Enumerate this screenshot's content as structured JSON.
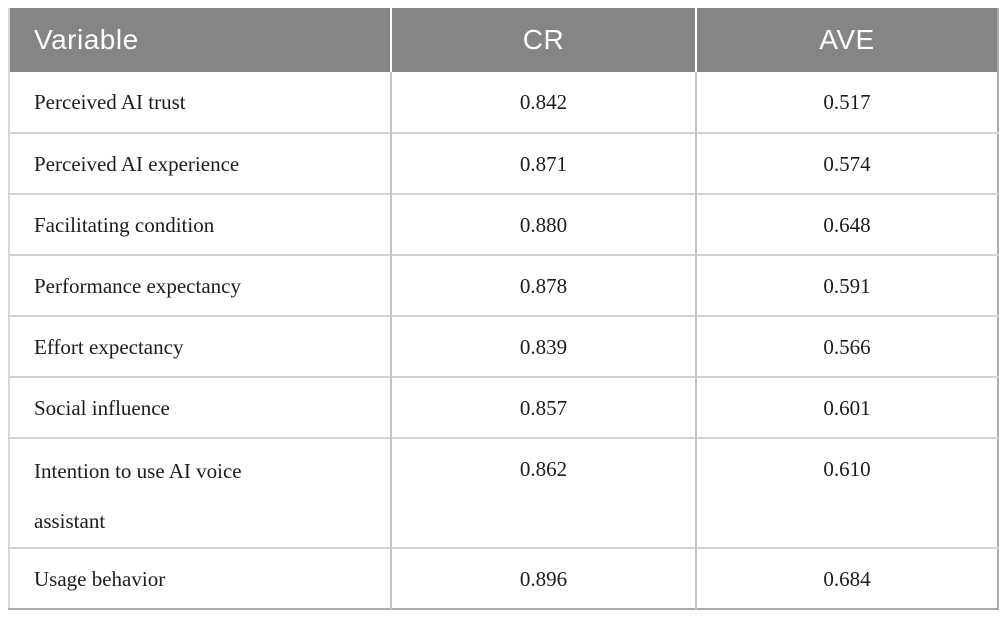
{
  "page": {
    "background": "#ffffff"
  },
  "table": {
    "columns": [
      {
        "label": "Variable"
      },
      {
        "label": "CR"
      },
      {
        "label": "AVE"
      }
    ],
    "rows": [
      {
        "variable": "Perceived AI trust",
        "cr": "0.842",
        "ave": "0.517"
      },
      {
        "variable": "Perceived AI experience",
        "cr": "0.871",
        "ave": "0.574"
      },
      {
        "variable": "Facilitating condition",
        "cr": "0.880",
        "ave": "0.648"
      },
      {
        "variable": "Performance expectancy",
        "cr": "0.878",
        "ave": "0.591"
      },
      {
        "variable": "Effort expectancy",
        "cr": "0.839",
        "ave": "0.566"
      },
      {
        "variable": "Social influence",
        "cr": "0.857",
        "ave": "0.601"
      },
      {
        "variable": "Intention to use AI voice assistant",
        "cr": "0.862",
        "ave": "0.610"
      },
      {
        "variable": "Usage behavior",
        "cr": "0.896",
        "ave": "0.684"
      }
    ],
    "colors": {
      "header_bg": "#858585",
      "header_text": "#ffffff",
      "body_text": "#1c1c1c",
      "row_divider": "#d2d2d2",
      "column_divider": "#c4c4c4",
      "outer_border": "#ababab"
    }
  }
}
